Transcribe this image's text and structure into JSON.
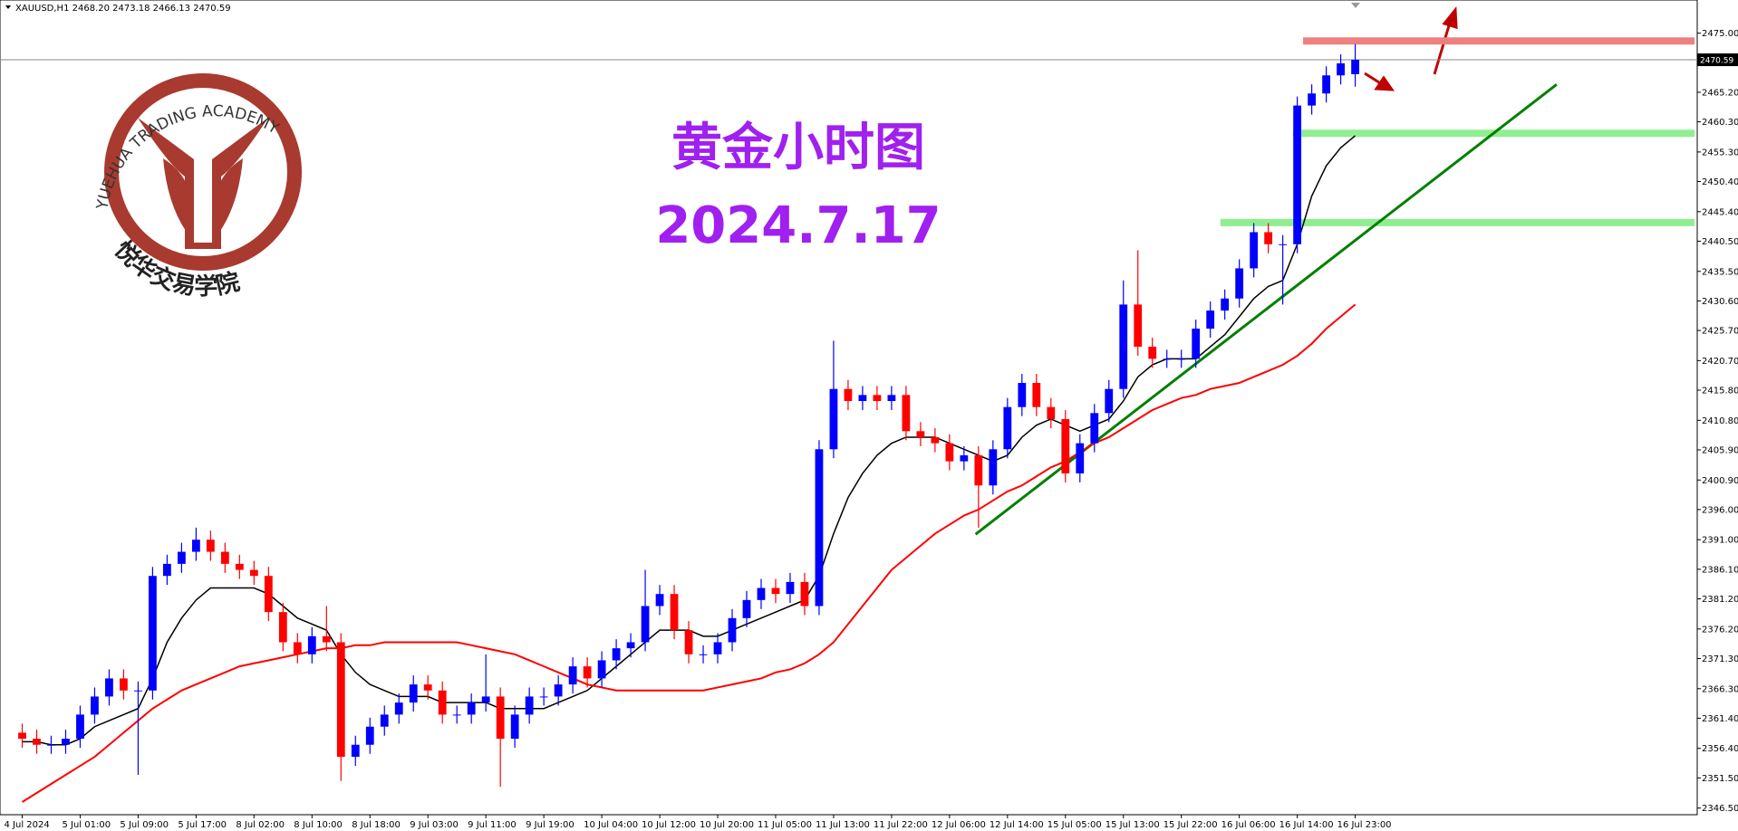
{
  "chart_data": {
    "type": "candlestick",
    "header": "XAUUSD,H1  2468.20 2473.18 2466.13 2470.59",
    "title": "黄金小时图",
    "subtitle": "2024.7.17",
    "logo_text": "YUEHUA TRADING ACADEMY",
    "logo_cn": "悦华交易学院",
    "categories": [
      "4 Jul 2024",
      null,
      null,
      null,
      "5 Jul 01:00",
      null,
      null,
      null,
      "5 Jul 09:00",
      null,
      null,
      null,
      "5 Jul 17:00",
      null,
      null,
      null,
      "8 Jul 02:00",
      null,
      null,
      null,
      "8 Jul 10:00",
      null,
      null,
      null,
      "8 Jul 18:00",
      null,
      null,
      null,
      "9 Jul 03:00",
      null,
      null,
      null,
      "9 Jul 11:00",
      null,
      null,
      null,
      "9 Jul 19:00",
      null,
      null,
      null,
      "10 Jul 04:00",
      null,
      null,
      null,
      "10 Jul 12:00",
      null,
      null,
      null,
      "10 Jul 20:00",
      null,
      null,
      null,
      "11 Jul 05:00",
      null,
      null,
      null,
      "11 Jul 13:00",
      null,
      null,
      null,
      "11 Jul 22:00",
      null,
      null,
      null,
      "12 Jul 06:00",
      null,
      null,
      null,
      "12 Jul 14:00",
      null,
      null,
      null,
      "15 Jul 05:00",
      null,
      null,
      null,
      "15 Jul 13:00",
      null,
      null,
      null,
      "15 Jul 22:00",
      null,
      null,
      null,
      "16 Jul 06:00",
      null,
      null,
      null,
      "16 Jul 14:00",
      null,
      null,
      null,
      "16 Jul 23:00"
    ],
    "open": [
      2359,
      2358,
      2357,
      2357,
      2358,
      2362,
      2365,
      2368,
      2366,
      2366,
      2385,
      2387,
      2389,
      2391,
      2389,
      2387,
      2386,
      2385,
      2379,
      2374,
      2372,
      2375,
      2374,
      2355,
      2357,
      2360,
      2362,
      2364,
      2367,
      2366,
      2362,
      2362,
      2364,
      2365,
      2358,
      2362,
      2365,
      2365,
      2367,
      2370,
      2368,
      2371,
      2373,
      2374,
      2380,
      2382,
      2376,
      2372,
      2372,
      2374,
      2378,
      2381,
      2383,
      2382,
      2384,
      2380,
      2406,
      2416,
      2414,
      2415,
      2414,
      2415,
      2409,
      2408,
      2407,
      2404,
      2405,
      2400,
      2406,
      2413,
      2417,
      2413,
      2411,
      2402,
      2407,
      2412,
      2416,
      2430,
      2423,
      2421,
      2421,
      2421,
      2426,
      2429,
      2431,
      2436,
      2442,
      2440,
      2440,
      2463,
      2465,
      2468,
      2468.2
    ],
    "high": [
      2360.5,
      2359.5,
      2358.5,
      2359.5,
      2363.5,
      2366.5,
      2369.5,
      2369.5,
      2367.5,
      2386.5,
      2388.5,
      2390.5,
      2393,
      2392.5,
      2390.5,
      2388.5,
      2387.5,
      2386.5,
      2380.5,
      2375.5,
      2376.5,
      2380,
      2375.5,
      2358.5,
      2361.5,
      2363.5,
      2365.5,
      2368.5,
      2368.5,
      2367.5,
      2363.5,
      2365.5,
      2372,
      2366.5,
      2363.5,
      2366.5,
      2366.5,
      2368.5,
      2371.5,
      2371.5,
      2372.5,
      2374.5,
      2375.5,
      2386,
      2383.5,
      2383.5,
      2377.5,
      2373.5,
      2375.5,
      2379.5,
      2382.5,
      2384.5,
      2384.5,
      2385.5,
      2385.5,
      2407.5,
      2424,
      2417.5,
      2416.5,
      2416.5,
      2416.5,
      2416.5,
      2410.5,
      2409.5,
      2408.5,
      2406.5,
      2406.5,
      2407.5,
      2414.5,
      2418.5,
      2418.5,
      2414.5,
      2412.5,
      2408.5,
      2413.5,
      2417.5,
      2434,
      2439,
      2424.5,
      2422.5,
      2422.5,
      2427.5,
      2430.5,
      2432.5,
      2437.5,
      2443.5,
      2443.5,
      2441.5,
      2464.5,
      2466.5,
      2469.5,
      2471.5,
      2473.18
    ],
    "low": [
      2356.5,
      2355.5,
      2355.5,
      2355.5,
      2356.5,
      2360.5,
      2363.5,
      2364.5,
      2352,
      2364.5,
      2383.5,
      2385.5,
      2387.5,
      2387.5,
      2385.5,
      2384.5,
      2383.5,
      2377.5,
      2372.5,
      2370.5,
      2370.5,
      2372.5,
      2351,
      2353.5,
      2355.5,
      2358.5,
      2360.5,
      2362.5,
      2364.5,
      2360.5,
      2360.5,
      2360.5,
      2362.5,
      2350,
      2356.5,
      2360.5,
      2363.5,
      2363.5,
      2365.5,
      2366.5,
      2366.5,
      2369.5,
      2371.5,
      2372.5,
      2378.5,
      2374.5,
      2370.5,
      2370.5,
      2370.5,
      2372.5,
      2376.5,
      2379.5,
      2380.5,
      2380.5,
      2378.5,
      2378.5,
      2404.5,
      2412.5,
      2412.5,
      2412.5,
      2412.5,
      2407.5,
      2406.5,
      2405.5,
      2402.5,
      2402.5,
      2393,
      2398.5,
      2404.5,
      2411.5,
      2411.5,
      2409.5,
      2400.5,
      2400.5,
      2405.5,
      2410.5,
      2414.5,
      2421.5,
      2419.5,
      2419.5,
      2419.5,
      2419.5,
      2424.5,
      2427.5,
      2429.5,
      2434.5,
      2438.5,
      2430,
      2438.5,
      2461.5,
      2463.5,
      2466.5,
      2466.13
    ],
    "close": [
      2358,
      2357,
      2357,
      2358,
      2362,
      2365,
      2368,
      2366,
      2366,
      2385,
      2387,
      2389,
      2391,
      2389,
      2387,
      2386,
      2385,
      2379,
      2374,
      2372,
      2375,
      2374,
      2355,
      2357,
      2360,
      2362,
      2364,
      2367,
      2366,
      2362,
      2362,
      2364,
      2365,
      2358,
      2362,
      2365,
      2365,
      2367,
      2370,
      2368,
      2371,
      2373,
      2374,
      2380,
      2382,
      2376,
      2372,
      2372,
      2374,
      2378,
      2381,
      2383,
      2382,
      2384,
      2380,
      2406,
      2416,
      2414,
      2415,
      2414,
      2415,
      2409,
      2408,
      2407,
      2404,
      2405,
      2400,
      2406,
      2413,
      2417,
      2413,
      2411,
      2402,
      2407,
      2412,
      2416,
      2430,
      2423,
      2421,
      2421,
      2421,
      2426,
      2429,
      2431,
      2436,
      2442,
      2440,
      2440,
      2463,
      2465,
      2468,
      2470,
      2470.59
    ],
    "up_color": "#0000ff",
    "down_color": "#ff0000",
    "series": [
      {
        "color": "#000000",
        "values": [
          2357.5,
          2357.5,
          2357,
          2357,
          2358,
          2360,
          2361,
          2362,
          2363,
          2368,
          2374,
          2378,
          2381,
          2383,
          2383,
          2383,
          2383,
          2382,
          2380,
          2378,
          2377,
          2376,
          2372,
          2369,
          2367,
          2366,
          2365,
          2365,
          2365,
          2364,
          2364,
          2364,
          2364,
          2363,
          2363,
          2363,
          2363,
          2364,
          2365,
          2366,
          2368,
          2370,
          2372,
          2374,
          2376,
          2376,
          2376,
          2375,
          2375,
          2376,
          2377,
          2378,
          2379,
          2380,
          2381,
          2385,
          2392,
          2398,
          2402,
          2405,
          2407,
          2408,
          2408,
          2408,
          2407,
          2406,
          2405,
          2404,
          2405,
          2408,
          2410,
          2411,
          2410,
          2409,
          2410,
          2411,
          2414,
          2418,
          2420,
          2421,
          2421,
          2421,
          2423,
          2425,
          2428,
          2431,
          2433,
          2434,
          2440,
          2448,
          2453,
          2456,
          2458
        ]
      },
      {
        "color": "#ff0000",
        "values": [
          2347.5,
          2349,
          2350.5,
          2352,
          2353.5,
          2355,
          2357,
          2359,
          2361,
          2363,
          2364.5,
          2366,
          2367,
          2368,
          2369,
          2370,
          2370.5,
          2371,
          2371.5,
          2372,
          2372.5,
          2373,
          2373,
          2373.5,
          2373.5,
          2374,
          2374,
          2374,
          2374,
          2374,
          2374,
          2373.5,
          2373,
          2372.5,
          2372,
          2371,
          2370,
          2369,
          2368,
          2367,
          2366.5,
          2366,
          2366,
          2366,
          2366,
          2366,
          2366,
          2366,
          2366.5,
          2367,
          2367.5,
          2368,
          2369,
          2369.5,
          2370.5,
          2372,
          2374,
          2377,
          2380,
          2383,
          2386,
          2388,
          2390,
          2392,
          2393.5,
          2395,
          2396,
          2397.5,
          2399,
          2400,
          2401.5,
          2403,
          2404,
          2405.5,
          2407,
          2408,
          2409.5,
          2411,
          2412.5,
          2413.5,
          2414.5,
          2415,
          2416,
          2416.5,
          2417,
          2418,
          2419,
          2420,
          2421.5,
          2423.5,
          2426,
          2428,
          2430
        ]
      }
    ],
    "ylim": [
      2345.4,
      2480.5
    ],
    "yticks": [
      {
        "value": 2475,
        "label": "2475.00"
      },
      {
        "value": 2465.2,
        "label": "2465.20"
      },
      {
        "value": 2460.3,
        "label": "2460.30"
      },
      {
        "value": 2455.3,
        "label": "2455.30"
      },
      {
        "value": 2450.4,
        "label": "2450.40"
      },
      {
        "value": 2445.4,
        "label": "2445.40"
      },
      {
        "value": 2440.5,
        "label": "2440.50"
      },
      {
        "value": 2435.5,
        "label": "2435.50"
      },
      {
        "value": 2430.6,
        "label": "2430.60"
      },
      {
        "value": 2425.7,
        "label": "2425.70"
      },
      {
        "value": 2420.7,
        "label": "2420.70"
      },
      {
        "value": 2415.8,
        "label": "2415.80"
      },
      {
        "value": 2410.8,
        "label": "2410.80"
      },
      {
        "value": 2405.9,
        "label": "2405.90"
      },
      {
        "value": 2400.9,
        "label": "2400.90"
      },
      {
        "value": 2396,
        "label": "2396.00"
      },
      {
        "value": 2391,
        "label": "2391.00"
      },
      {
        "value": 2386.1,
        "label": "2386.10"
      },
      {
        "value": 2381.2,
        "label": "2381.20"
      },
      {
        "value": 2376.2,
        "label": "2376.20"
      },
      {
        "value": 2371.3,
        "label": "2371.30"
      },
      {
        "value": 2366.3,
        "label": "2366.30"
      },
      {
        "value": 2361.4,
        "label": "2361.40"
      },
      {
        "value": 2356.4,
        "label": "2356.40"
      },
      {
        "value": 2351.5,
        "label": "2351.50"
      },
      {
        "value": 2346.5,
        "label": "2346.50"
      }
    ],
    "levels": [
      {
        "value": 2473.7,
        "color": "#f08080"
      },
      {
        "value": 2458.4,
        "color": "#90ee90"
      },
      {
        "value": 2443.6,
        "color": "#90ee90"
      }
    ],
    "trendline": {
      "values": [
        2391.9,
        2466.5
      ],
      "color": "#008000"
    }
  }
}
